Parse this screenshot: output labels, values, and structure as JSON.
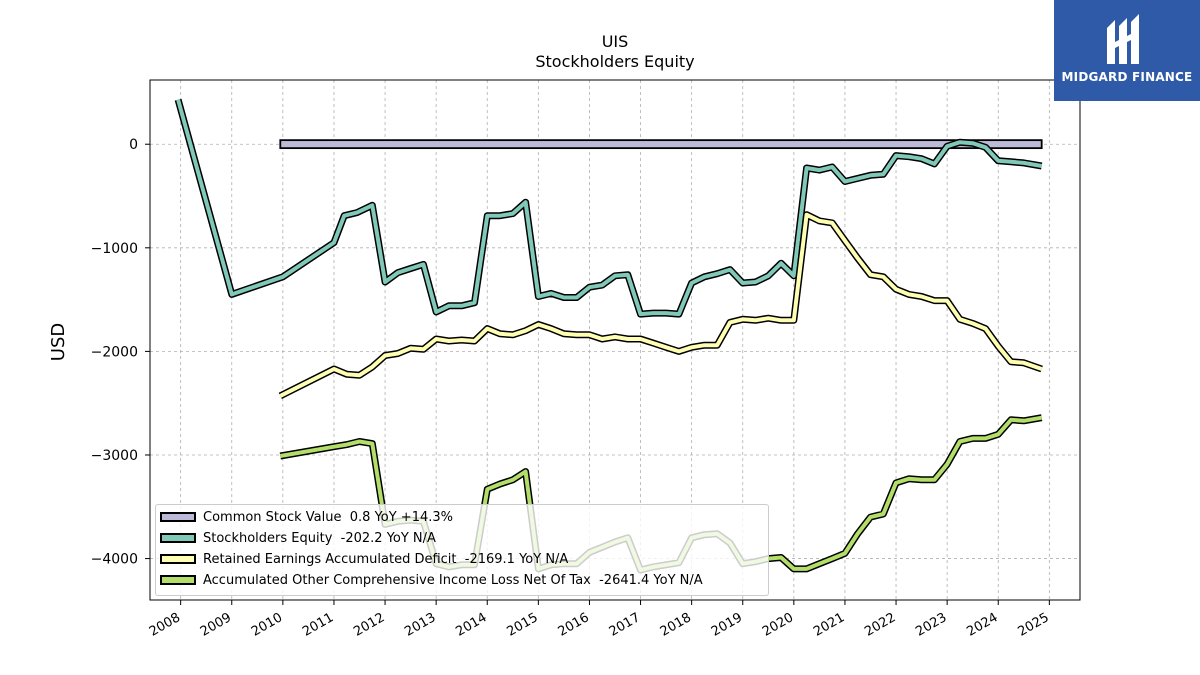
{
  "header": {
    "ticker": "UIS",
    "subtitle": "Stockholders  Equity"
  },
  "logo": {
    "text": "MIDGARD FINANCE",
    "icon": "midgard-logo-icon",
    "bg_color": "#2f5aa8"
  },
  "chart_data": {
    "type": "line",
    "title": "UIS",
    "subtitle": "Stockholders  Equity",
    "xlabel": "",
    "ylabel": "USD",
    "xlim": [
      2007.4,
      2025.6
    ],
    "ylim": [
      -4400,
      620
    ],
    "x_ticks": [
      2008,
      2009,
      2010,
      2011,
      2012,
      2013,
      2014,
      2015,
      2016,
      2017,
      2018,
      2019,
      2020,
      2021,
      2022,
      2023,
      2024,
      2025
    ],
    "x_tick_labels": [
      "2008",
      "2009",
      "2010",
      "2011",
      "2012",
      "2013",
      "2014",
      "2015",
      "2016",
      "2017",
      "2018",
      "2019",
      "2020",
      "2021",
      "2022",
      "2023",
      "2024",
      "2025"
    ],
    "y_ticks": [
      0,
      -1000,
      -2000,
      -3000,
      -4000
    ],
    "y_tick_labels": [
      "0",
      "−1000",
      "−2000",
      "−3000",
      "−4000"
    ],
    "grid": true,
    "legend_position": "bottom-left",
    "series": [
      {
        "name": "Common Stock Value",
        "legend": "Common Stock Value  0.8 YoY +14.3%",
        "color": "#bcbad9",
        "style": "bar-band",
        "x": [
          2009.95,
          2024.85
        ],
        "y": [
          0.8,
          0.8
        ]
      },
      {
        "name": "Stockholders Equity",
        "legend": "Stockholders Equity  -202.2 YoY N/A",
        "color": "#80c9b9",
        "x": [
          2007.95,
          2009.0,
          2010.0,
          2011.0,
          2011.2,
          2011.45,
          2011.75,
          2012.0,
          2012.25,
          2012.5,
          2012.75,
          2013.0,
          2013.25,
          2013.5,
          2013.75,
          2014.0,
          2014.25,
          2014.5,
          2014.75,
          2015.0,
          2015.25,
          2015.5,
          2015.75,
          2016.0,
          2016.25,
          2016.5,
          2016.75,
          2017.0,
          2017.25,
          2017.5,
          2017.75,
          2018.0,
          2018.25,
          2018.5,
          2018.75,
          2019.0,
          2019.25,
          2019.5,
          2019.75,
          2020.0,
          2020.25,
          2020.5,
          2020.75,
          2021.0,
          2021.25,
          2021.5,
          2021.75,
          2022.0,
          2022.25,
          2022.5,
          2022.75,
          2023.0,
          2023.25,
          2023.5,
          2023.75,
          2024.0,
          2024.25,
          2024.5,
          2024.85
        ],
        "y": [
          430,
          -1450,
          -1280,
          -950,
          -690,
          -660,
          -590,
          -1330,
          -1240,
          -1200,
          -1160,
          -1620,
          -1560,
          -1560,
          -1530,
          -690,
          -690,
          -670,
          -560,
          -1470,
          -1440,
          -1480,
          -1480,
          -1380,
          -1360,
          -1270,
          -1260,
          -1640,
          -1630,
          -1630,
          -1640,
          -1340,
          -1280,
          -1250,
          -1210,
          -1340,
          -1330,
          -1270,
          -1150,
          -1270,
          -230,
          -250,
          -220,
          -360,
          -330,
          -300,
          -290,
          -110,
          -120,
          -140,
          -190,
          -20,
          20,
          10,
          -30,
          -160,
          -170,
          -180,
          -210
        ]
      },
      {
        "name": "Retained Earnings Accumulated Deficit",
        "legend": "Retained Earnings Accumulated Deficit  -2169.1 YoY N/A",
        "color": "#ffffb3",
        "x": [
          2009.95,
          2011.0,
          2011.25,
          2011.5,
          2011.75,
          2012.0,
          2012.25,
          2012.5,
          2012.75,
          2013.0,
          2013.25,
          2013.5,
          2013.75,
          2014.0,
          2014.25,
          2014.5,
          2014.75,
          2015.0,
          2015.25,
          2015.5,
          2015.75,
          2016.0,
          2016.25,
          2016.5,
          2016.75,
          2017.0,
          2017.25,
          2017.5,
          2017.75,
          2018.0,
          2018.25,
          2018.5,
          2018.75,
          2019.0,
          2019.25,
          2019.5,
          2019.75,
          2020.0,
          2020.25,
          2020.5,
          2020.75,
          2021.0,
          2021.25,
          2021.5,
          2021.75,
          2022.0,
          2022.25,
          2022.5,
          2022.75,
          2023.0,
          2023.25,
          2023.5,
          2023.75,
          2024.0,
          2024.25,
          2024.5,
          2024.85
        ],
        "y": [
          -2430,
          -2170,
          -2220,
          -2230,
          -2150,
          -2040,
          -2020,
          -1970,
          -1980,
          -1880,
          -1900,
          -1890,
          -1900,
          -1780,
          -1830,
          -1840,
          -1800,
          -1740,
          -1780,
          -1830,
          -1840,
          -1840,
          -1880,
          -1860,
          -1880,
          -1880,
          -1920,
          -1960,
          -2000,
          -1960,
          -1940,
          -1940,
          -1720,
          -1690,
          -1700,
          -1680,
          -1700,
          -1700,
          -680,
          -740,
          -760,
          -930,
          -1100,
          -1260,
          -1280,
          -1400,
          -1450,
          -1470,
          -1510,
          -1510,
          -1690,
          -1730,
          -1780,
          -1950,
          -2100,
          -2110,
          -2170
        ]
      },
      {
        "name": "Accumulated Other Comprehensive Income Loss Net Of Tax",
        "legend": "Accumulated Other Comprehensive Income Loss Net Of Tax  -2641.4 YoY N/A",
        "color": "#b3de69",
        "x": [
          2009.95,
          2011.0,
          2011.25,
          2011.5,
          2011.75,
          2012.0,
          2012.25,
          2012.5,
          2012.75,
          2013.0,
          2013.25,
          2013.5,
          2013.75,
          2014.0,
          2014.25,
          2014.5,
          2014.75,
          2015.0,
          2015.25,
          2015.5,
          2015.75,
          2016.0,
          2016.25,
          2016.5,
          2016.75,
          2017.0,
          2017.25,
          2017.5,
          2017.75,
          2018.0,
          2018.25,
          2018.5,
          2018.75,
          2019.0,
          2019.25,
          2019.5,
          2019.75,
          2020.0,
          2020.25,
          2020.5,
          2020.75,
          2021.0,
          2021.25,
          2021.5,
          2021.75,
          2022.0,
          2022.25,
          2022.5,
          2022.75,
          2023.0,
          2023.25,
          2023.5,
          2023.75,
          2024.0,
          2024.25,
          2024.5,
          2024.85
        ],
        "y": [
          -3010,
          -2920,
          -2900,
          -2870,
          -2890,
          -3670,
          -3640,
          -3630,
          -3640,
          -4050,
          -4080,
          -4060,
          -4060,
          -3330,
          -3280,
          -3240,
          -3160,
          -4100,
          -4060,
          -4050,
          -4050,
          -3940,
          -3890,
          -3840,
          -3800,
          -4110,
          -4080,
          -4060,
          -4040,
          -3800,
          -3770,
          -3760,
          -3850,
          -4050,
          -4030,
          -4000,
          -3990,
          -4100,
          -4100,
          -4050,
          -4000,
          -3950,
          -3760,
          -3600,
          -3570,
          -3270,
          -3230,
          -3240,
          -3240,
          -3090,
          -2870,
          -2840,
          -2840,
          -2800,
          -2660,
          -2670,
          -2640
        ]
      }
    ]
  }
}
